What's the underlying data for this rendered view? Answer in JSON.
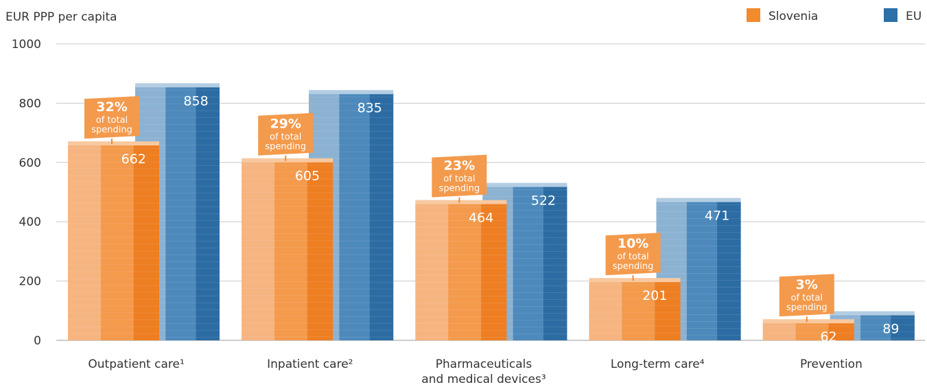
{
  "chart_data": {
    "type": "bar",
    "ylabel": "EUR PPP per capita",
    "ylim": [
      0,
      1000
    ],
    "yticks": [
      "0",
      "200",
      "400",
      "600",
      "800",
      "1000"
    ],
    "grid": true,
    "legend_placement": "top-right",
    "categories": [
      [
        "Outpatient care¹"
      ],
      [
        "Inpatient care²"
      ],
      [
        "Pharmaceuticals",
        "and medical devices³"
      ],
      [
        "Long-term care⁴"
      ],
      [
        "Prevention"
      ]
    ],
    "series": [
      {
        "name": "Slovenia",
        "color": "#f28a2e",
        "values": [
          662,
          605,
          464,
          201,
          62
        ]
      },
      {
        "name": "EU",
        "color": "#2b70a8",
        "values": [
          858,
          835,
          522,
          471,
          89
        ]
      }
    ],
    "annotations": [
      {
        "percent": "32%",
        "text_lines": [
          "of total",
          "spending"
        ]
      },
      {
        "percent": "29%",
        "text_lines": [
          "of total",
          "spending"
        ]
      },
      {
        "percent": "23%",
        "text_lines": [
          "of total",
          "spending"
        ]
      },
      {
        "percent": "10%",
        "text_lines": [
          "of total",
          "spending"
        ]
      },
      {
        "percent": "3%",
        "text_lines": [
          "of total",
          "spending"
        ]
      }
    ]
  }
}
